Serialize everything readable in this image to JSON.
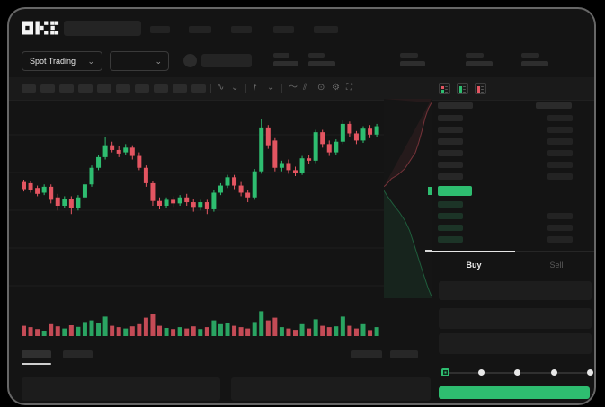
{
  "window": {
    "background": "#141414"
  },
  "colors": {
    "green": "#2EBD70",
    "red": "#E35561",
    "panel": "#1d1d1d",
    "skeleton": "#272727",
    "bid_skeleton": "#1c3427"
  },
  "nav": {
    "logo": "OKX"
  },
  "subheader": {
    "market_selector_label": "Spot Trading"
  },
  "icons": {
    "chevron_down": "⌄"
  },
  "toolbar": {
    "icons": [
      {
        "name": "candle-style-icon",
        "glyph": "∿"
      },
      {
        "name": "candle-style-chevron-icon",
        "glyph": "⌄"
      },
      {
        "name": "divider",
        "glyph": ""
      },
      {
        "name": "indicators-icon",
        "glyph": "ƒ"
      },
      {
        "name": "indicators-chevron-icon",
        "glyph": "⌄"
      },
      {
        "name": "divider",
        "glyph": ""
      },
      {
        "name": "line-chart-icon",
        "glyph": "〜"
      },
      {
        "name": "compare-icon",
        "glyph": "⫽"
      },
      {
        "name": "screenshot-icon",
        "glyph": "⊙"
      },
      {
        "name": "chart-settings-icon",
        "glyph": "⚙"
      },
      {
        "name": "fullscreen-icon",
        "glyph": "⛶"
      }
    ]
  },
  "orderbook": {
    "ask_rows": 6,
    "bid_rows": 4,
    "bid_rows_with_amount": [
      1,
      2,
      3
    ],
    "toggles": [
      {
        "name": "orderbook-view-both-icon",
        "style": "both"
      },
      {
        "name": "orderbook-view-bids-icon",
        "style": "bids"
      },
      {
        "name": "orderbook-view-asks-icon",
        "style": "asks"
      }
    ]
  },
  "trade_panel": {
    "tabs": [
      {
        "label": "Buy",
        "active": true
      },
      {
        "label": "Sell",
        "active": false
      }
    ],
    "slider_stops": [
      0,
      25,
      50,
      75,
      100
    ],
    "slider_selected_index": 0,
    "buy_button_label": ""
  },
  "chart_data": {
    "type": "candlestick",
    "title": "",
    "note": "no axis labels visible; values normalized 0-100",
    "value_range": [
      0,
      100
    ],
    "grid": true,
    "candles": [
      [
        45,
        39,
        47,
        37
      ],
      [
        44,
        38,
        46,
        36
      ],
      [
        40,
        35,
        42,
        33
      ],
      [
        36,
        41,
        43,
        34
      ],
      [
        41,
        30,
        43,
        27
      ],
      [
        32,
        25,
        35,
        21
      ],
      [
        25,
        31,
        33,
        23
      ],
      [
        31,
        23,
        33,
        18
      ],
      [
        23,
        32,
        34,
        21
      ],
      [
        32,
        43,
        45,
        30
      ],
      [
        43,
        57,
        59,
        41
      ],
      [
        57,
        66,
        68,
        55
      ],
      [
        66,
        76,
        83,
        64
      ],
      [
        76,
        72,
        79,
        70
      ],
      [
        72,
        69,
        75,
        66
      ],
      [
        70,
        74,
        77,
        68
      ],
      [
        74,
        67,
        76,
        64
      ],
      [
        67,
        57,
        70,
        55
      ],
      [
        57,
        44,
        59,
        41
      ],
      [
        44,
        29,
        46,
        25
      ],
      [
        29,
        25,
        32,
        22
      ],
      [
        25,
        30,
        32,
        23
      ],
      [
        30,
        27,
        33,
        24
      ],
      [
        27,
        32,
        34,
        25
      ],
      [
        32,
        28,
        35,
        25
      ],
      [
        28,
        24,
        31,
        20
      ],
      [
        24,
        28,
        30,
        21
      ],
      [
        28,
        22,
        30,
        18
      ],
      [
        22,
        36,
        38,
        20
      ],
      [
        36,
        42,
        44,
        34
      ],
      [
        42,
        49,
        51,
        40
      ],
      [
        49,
        42,
        51,
        39
      ],
      [
        42,
        36,
        45,
        33
      ],
      [
        36,
        32,
        38,
        28
      ],
      [
        32,
        54,
        56,
        30
      ],
      [
        54,
        91,
        98,
        52
      ],
      [
        91,
        76,
        93,
        73
      ],
      [
        80,
        57,
        82,
        54
      ],
      [
        57,
        61,
        63,
        54
      ],
      [
        61,
        55,
        64,
        52
      ],
      [
        55,
        53,
        58,
        50
      ],
      [
        53,
        65,
        67,
        51
      ],
      [
        65,
        63,
        68,
        60
      ],
      [
        63,
        87,
        89,
        61
      ],
      [
        87,
        77,
        89,
        74
      ],
      [
        77,
        70,
        80,
        67
      ],
      [
        70,
        79,
        81,
        68
      ],
      [
        79,
        94,
        97,
        77
      ],
      [
        94,
        86,
        96,
        83
      ],
      [
        86,
        80,
        88,
        77
      ],
      [
        80,
        90,
        92,
        78
      ],
      [
        90,
        85,
        93,
        82
      ],
      [
        85,
        92,
        94,
        83
      ]
    ],
    "volumes": [
      38,
      33,
      26,
      20,
      44,
      36,
      28,
      40,
      34,
      52,
      58,
      48,
      72,
      38,
      33,
      28,
      36,
      44,
      68,
      82,
      38,
      30,
      26,
      33,
      28,
      36,
      26,
      33,
      58,
      44,
      48,
      38,
      33,
      28,
      52,
      92,
      58,
      68,
      33,
      28,
      23,
      44,
      28,
      62,
      38,
      33,
      36,
      72,
      38,
      28,
      44,
      22,
      33
    ],
    "depth": {
      "asks": [
        [
          1,
          0.02
        ],
        [
          0.93,
          0.05
        ],
        [
          0.86,
          0.1
        ],
        [
          0.8,
          0.16
        ],
        [
          0.73,
          0.22
        ],
        [
          0.66,
          0.27
        ],
        [
          0.55,
          0.31
        ],
        [
          0.44,
          0.35
        ],
        [
          0.3,
          0.38
        ],
        [
          0.16,
          0.4
        ],
        [
          0.05,
          0.43
        ],
        [
          0,
          0.44
        ]
      ],
      "bids": [
        [
          0,
          0.46
        ],
        [
          0.08,
          0.49
        ],
        [
          0.2,
          0.53
        ],
        [
          0.33,
          0.57
        ],
        [
          0.44,
          0.61
        ],
        [
          0.54,
          0.66
        ],
        [
          0.62,
          0.72
        ],
        [
          0.7,
          0.78
        ],
        [
          0.78,
          0.84
        ],
        [
          0.86,
          0.9
        ],
        [
          0.93,
          0.95
        ],
        [
          1,
          0.99
        ]
      ]
    }
  }
}
